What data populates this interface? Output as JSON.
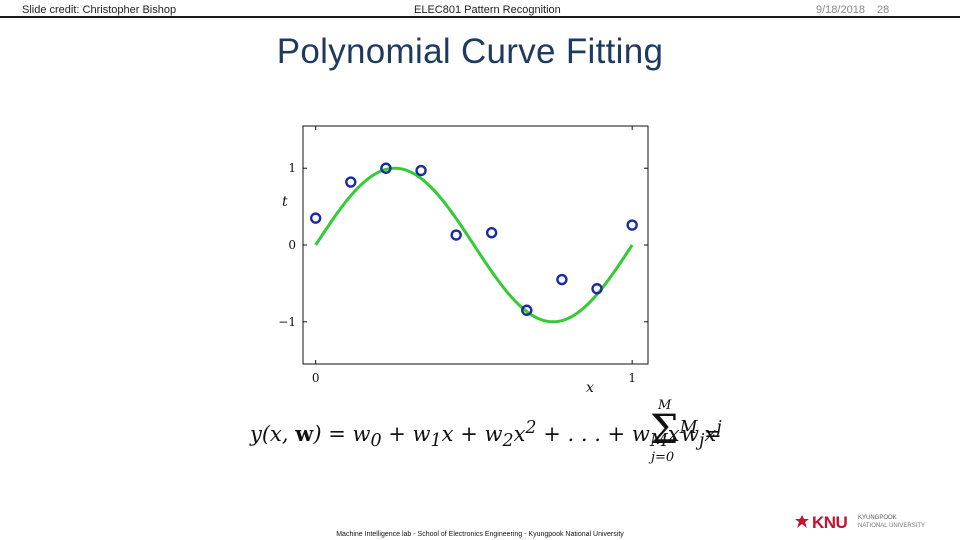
{
  "header": {
    "credit": "Slide credit: Christopher Bishop",
    "course": "ELEC801 Pattern Recognition",
    "date": "9/18/2018",
    "slide_number": "28"
  },
  "title": "Polynomial Curve Fitting",
  "formula": {
    "lhs": "y(x, w) = w",
    "rhs_text": "y(x, w) = w₀ + w₁x + w₂x² + … + w_M x^M = Σ_{j=0}^{M} w_j x^j",
    "sum_upper": "M",
    "sum_lower": "j=0",
    "sum_term": "w",
    "sum_term_sub": "j",
    "sum_term_var": "x",
    "sum_term_sup": "j"
  },
  "footer": "Machine Intelligence lab - School of Electronics Engineering - Kyungpook National University",
  "logo": {
    "mark": "KNU",
    "line1": "KYUNGPOOK",
    "line2": "NATIONAL UNIVERSITY",
    "color": "#c4122f"
  },
  "chart_data": {
    "type": "scatter",
    "xlabel": "x",
    "ylabel": "t",
    "xlim": [
      -0.04,
      1.05
    ],
    "ylim": [
      -1.55,
      1.55
    ],
    "x_ticks": [
      0,
      1
    ],
    "y_ticks": [
      -1,
      0,
      1
    ],
    "grid": false,
    "curve": {
      "function": "sin(2*pi*x)",
      "color": "#33cc33"
    },
    "points": {
      "color": "#1a2aa0",
      "x": [
        0.0,
        0.111,
        0.222,
        0.333,
        0.444,
        0.556,
        0.667,
        0.778,
        0.889,
        1.0
      ],
      "y": [
        0.35,
        0.82,
        1.0,
        0.97,
        0.13,
        0.16,
        -0.85,
        -0.45,
        -0.57,
        0.26
      ]
    }
  }
}
